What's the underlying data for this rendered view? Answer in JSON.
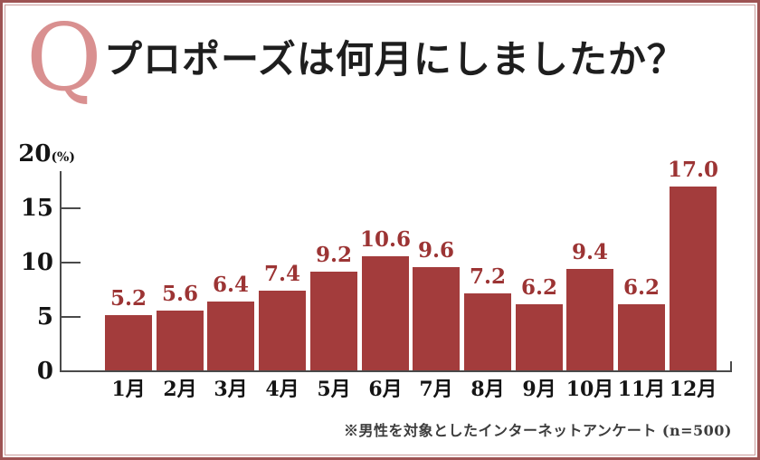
{
  "header": {
    "q_mark": "Q",
    "title": "プロポーズは何月にしましたか？"
  },
  "colors": {
    "bar": "#a33c3c",
    "value_label": "#9c3434",
    "q_mark": "#d99090",
    "frame_outer": "#9d5353",
    "frame_inner": "#c99a9a",
    "axis": "#4a4a4a",
    "title_text": "#1e1e1e"
  },
  "chart_data": {
    "type": "bar",
    "title": "プロポーズは何月にしましたか？",
    "categories": [
      "1月",
      "2月",
      "3月",
      "4月",
      "5月",
      "6月",
      "7月",
      "8月",
      "9月",
      "10月",
      "11月",
      "12月"
    ],
    "values": [
      5.2,
      5.6,
      6.4,
      7.4,
      9.2,
      10.6,
      9.6,
      7.2,
      6.2,
      9.4,
      6.2,
      17.0
    ],
    "xlabel": "",
    "ylabel": "(%)",
    "unit": "(%)",
    "ylim": [
      0,
      20
    ],
    "yticks": [
      0,
      5,
      10,
      15,
      20
    ],
    "grid": false,
    "legend": "none",
    "value_labels_shown": true
  },
  "footer": {
    "note": "※男性を対象としたインターネットアンケート (n=500)"
  }
}
